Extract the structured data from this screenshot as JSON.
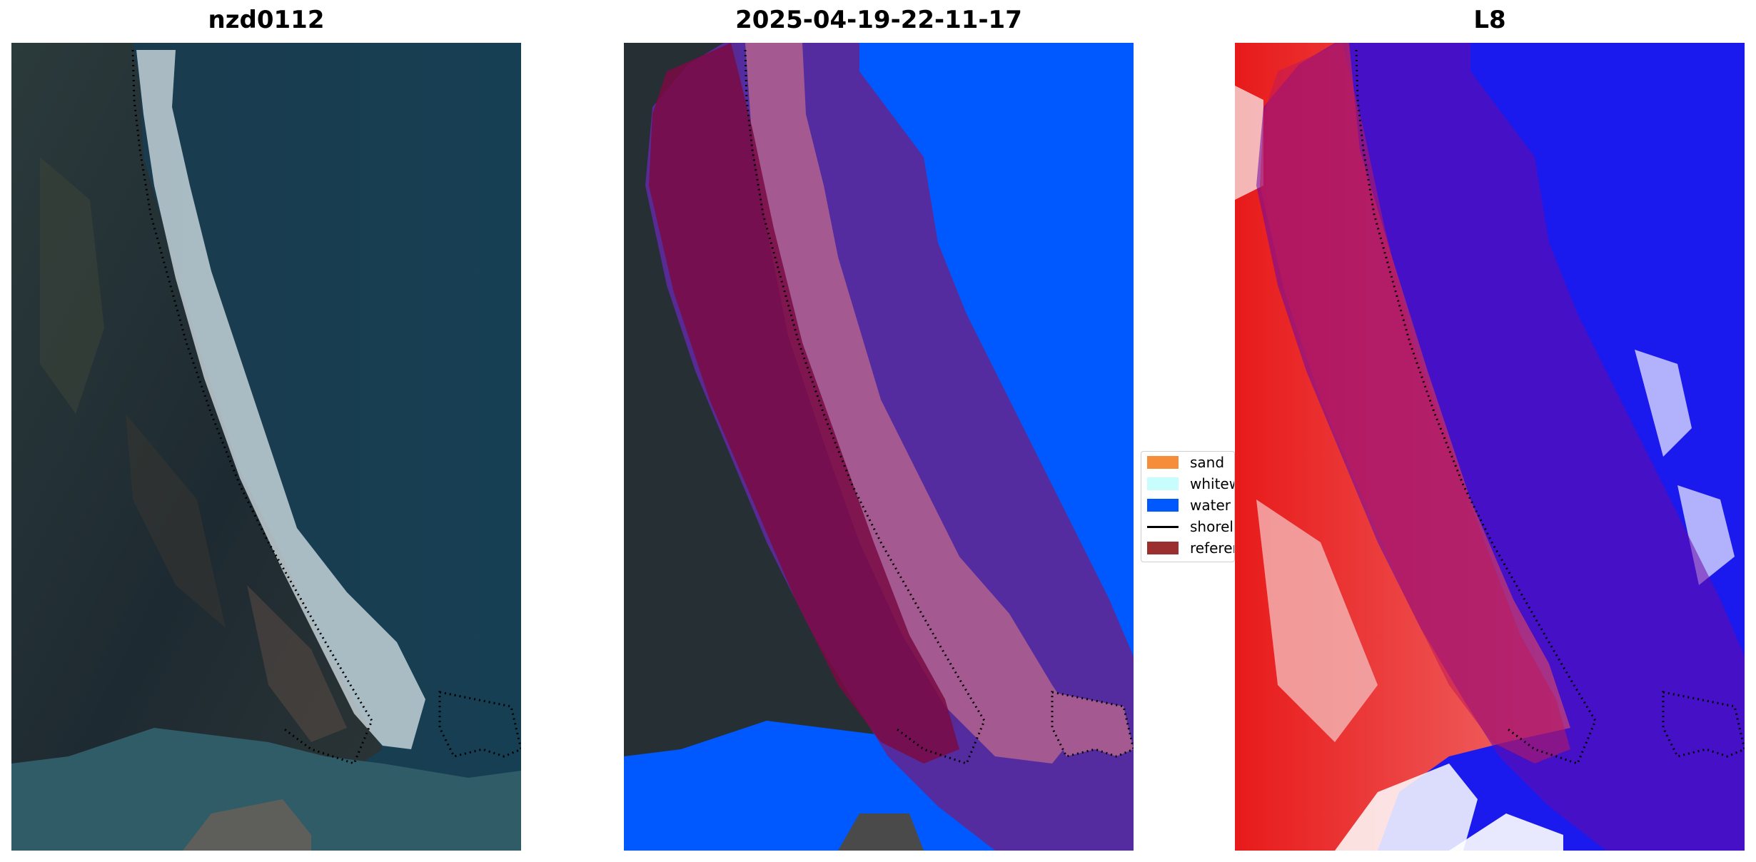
{
  "panels": [
    {
      "title": "nzd0112",
      "kind": "rgb-image"
    },
    {
      "title": "2025-04-19-22-11-17",
      "kind": "classified-overlay"
    },
    {
      "title": "L8",
      "kind": "index-colormap"
    }
  ],
  "legend": {
    "items": [
      {
        "label": "sand",
        "color": "#f58d3b",
        "marker": "patch"
      },
      {
        "label": "whitewater",
        "color": "#c8fdfd",
        "marker": "patch"
      },
      {
        "label": "water",
        "color": "#0059ff",
        "marker": "patch"
      },
      {
        "label": "shoreline",
        "color": "#000000",
        "marker": "line"
      },
      {
        "label": "reference shoreline buffer",
        "color": "#9b2f2f",
        "marker": "patch"
      }
    ]
  },
  "colors": {
    "land_dark": "#1f2a33",
    "ocean": "#173f54",
    "buffer_overlay": "#7a0a44",
    "water_class": "#0059ff",
    "whitewater_class": "#a45a90",
    "index_red": "#e83a3a",
    "index_blue": "#1a1aee"
  }
}
